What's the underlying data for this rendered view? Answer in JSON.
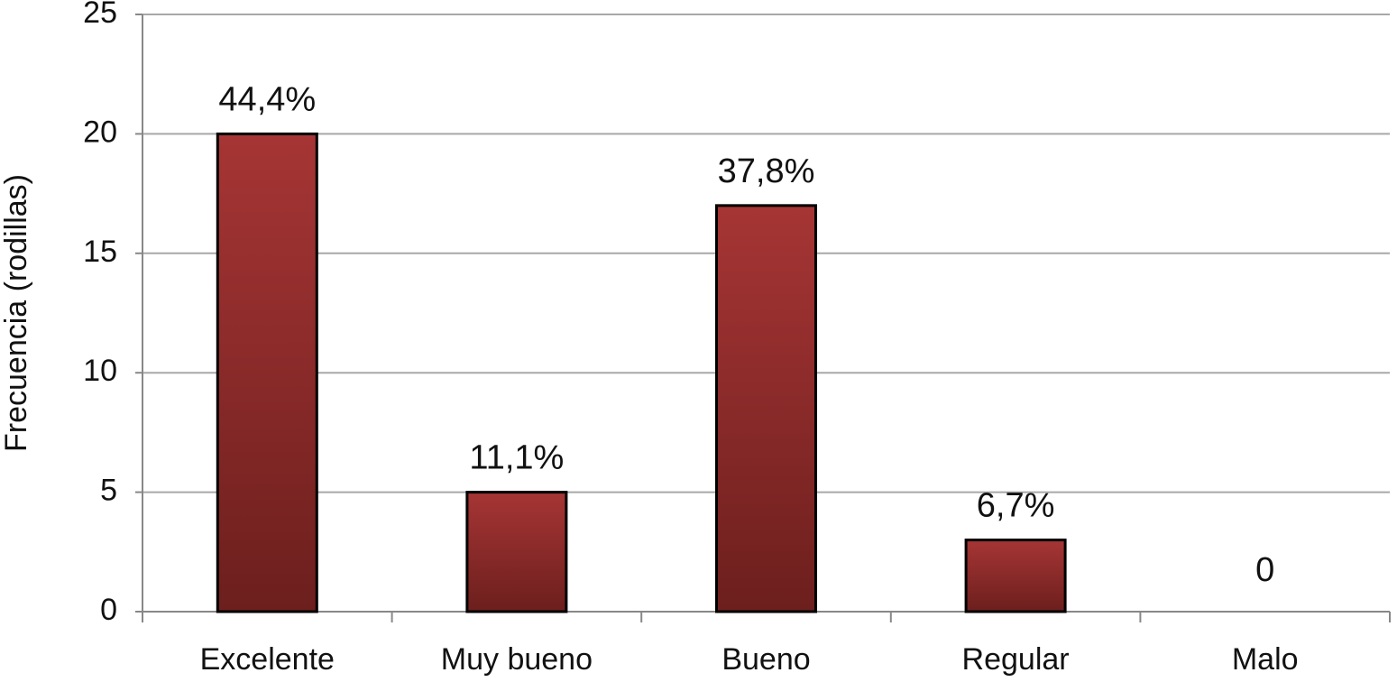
{
  "chart_data": {
    "type": "bar",
    "y_label": "Frecuencia (rodillas)",
    "categories": [
      "Excelente",
      "Muy bueno",
      "Bueno",
      "Regular",
      "Malo"
    ],
    "values": [
      20,
      5,
      17,
      3,
      0
    ],
    "annotations": [
      "44,4%",
      "11,1%",
      "37,8%",
      "6,7%",
      "0"
    ],
    "color": "#9b2f2d",
    "ylim": [
      0,
      25
    ],
    "yticks": [
      0,
      5,
      10,
      15,
      20,
      25
    ],
    "grid": true
  }
}
